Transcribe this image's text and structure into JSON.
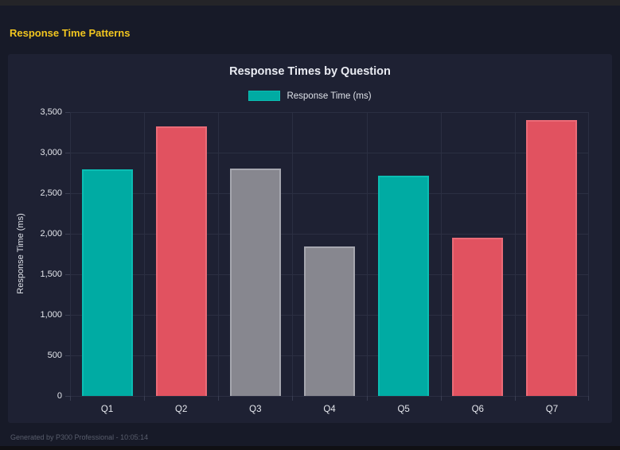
{
  "header": {
    "title": "Response Time Patterns"
  },
  "footer": {
    "text": "Generated by P300 Professional - 10:05:14"
  },
  "colors": {
    "page_bg": "#171a28",
    "panel_bg": "#1e2133",
    "title_yellow": "#f1c51f",
    "grid": "#2b2f42",
    "tick_text": "#e4e6ec",
    "series": {
      "teal": {
        "fill": "#00aba3",
        "border": "#0bbdb3"
      },
      "red": {
        "fill": "#e15260",
        "border": "#ea6b77"
      },
      "gray": {
        "fill": "#87878f",
        "border": "#a6a7af"
      }
    }
  },
  "chart_data": {
    "type": "bar",
    "title": "Response Times by Question",
    "legend": [
      "Response Time (ms)"
    ],
    "legend_position": "top",
    "categories": [
      "Q1",
      "Q2",
      "Q3",
      "Q4",
      "Q5",
      "Q6",
      "Q7"
    ],
    "values": [
      2790,
      3320,
      2800,
      1845,
      2715,
      1950,
      3400
    ],
    "bar_colors": [
      "teal",
      "red",
      "gray",
      "gray",
      "teal",
      "red",
      "red"
    ],
    "xlabel": "",
    "ylabel": "Response Time (ms)",
    "ylim": [
      0,
      3500
    ],
    "ytick_step": 500,
    "grid": true
  }
}
